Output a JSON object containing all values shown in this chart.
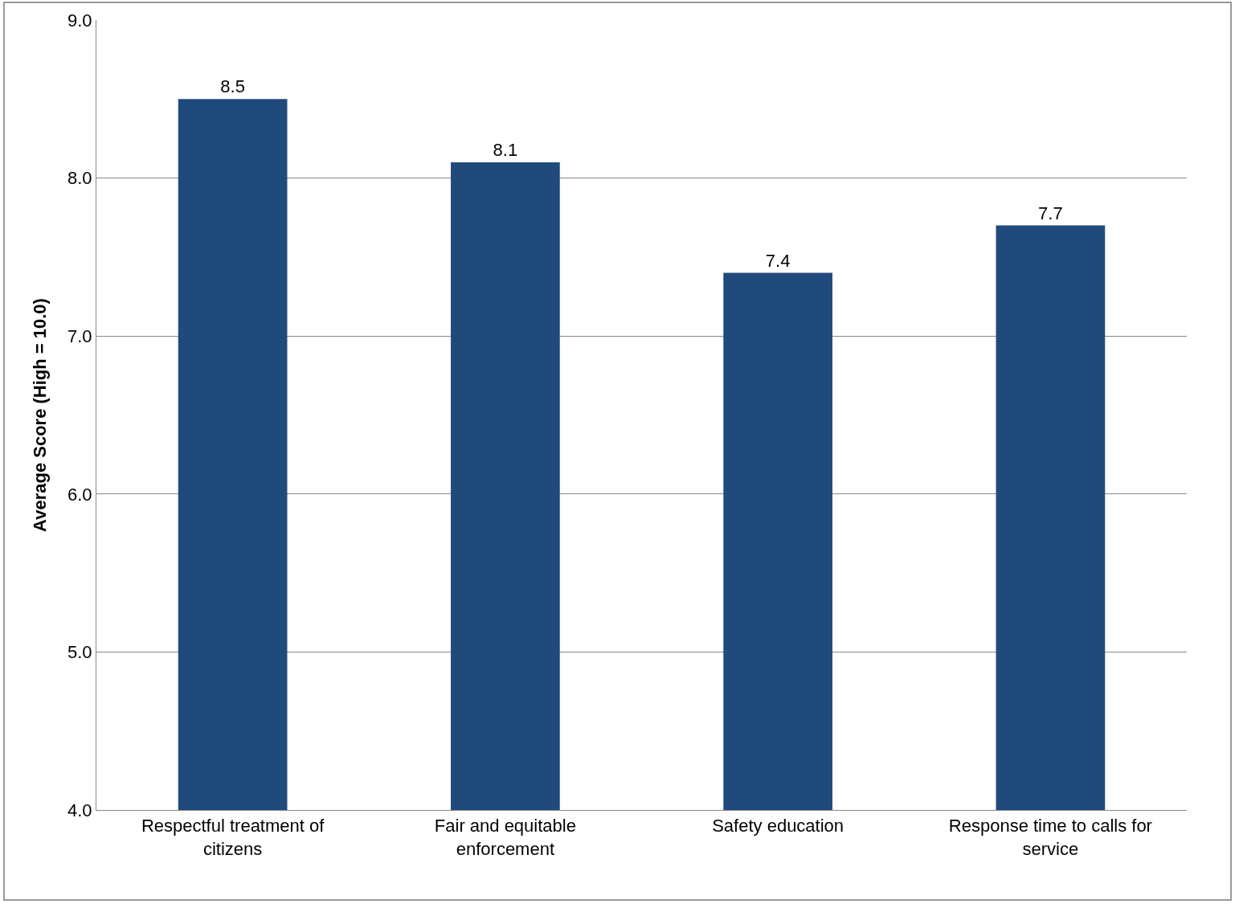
{
  "chart_data": {
    "type": "bar",
    "ylabel": "Average Score (High = 10.0)",
    "categories": [
      "Respectful treatment of citizens",
      "Fair and equitable enforcement",
      "Safety education",
      "Response time to calls for service"
    ],
    "values": [
      8.5,
      8.1,
      7.4,
      7.7
    ],
    "color": "#214a7c",
    "data_labels": true,
    "ylim": [
      4,
      9
    ],
    "yticks": [
      {
        "value": 4,
        "label": "4.0"
      },
      {
        "value": 5,
        "label": "5.0"
      },
      {
        "value": 6,
        "label": "6.0"
      },
      {
        "value": 7,
        "label": "7.0"
      },
      {
        "value": 8,
        "label": "8.0"
      },
      {
        "value": 9,
        "label": "9.0"
      }
    ],
    "grid": "y"
  }
}
